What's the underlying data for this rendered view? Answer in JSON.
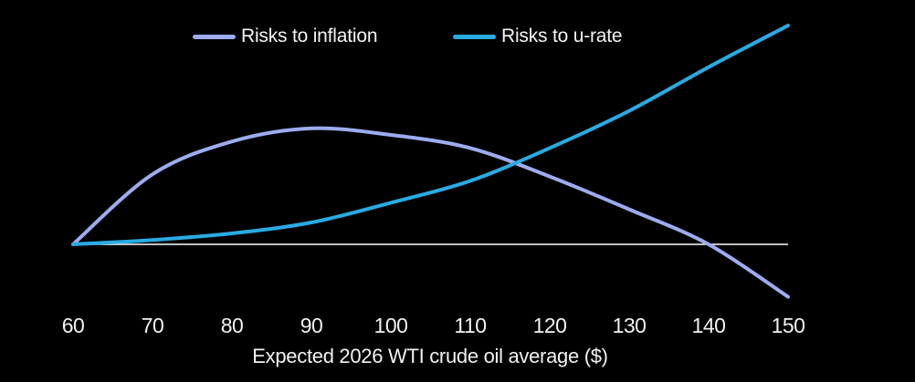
{
  "chart": {
    "background": "#000000",
    "baseline_color": "#ffffff",
    "text_color": "#f2f2f2"
  },
  "chart_data": {
    "type": "line",
    "title": "",
    "xlabel": "Expected 2026 WTI crude oil average ($)",
    "ylabel": "",
    "x": [
      60,
      70,
      80,
      90,
      100,
      110,
      120,
      130,
      140,
      150
    ],
    "categories": [
      "60",
      "70",
      "80",
      "90",
      "100",
      "110",
      "120",
      "130",
      "140",
      "150"
    ],
    "xlim": [
      60,
      150
    ],
    "ylim": [
      -0.3,
      1.05
    ],
    "baseline": 0,
    "grid": false,
    "legend_position": "top",
    "series": [
      {
        "name": "Risks to inflation",
        "color": "#9DACEF",
        "values": [
          0,
          0.32,
          0.47,
          0.53,
          0.5,
          0.44,
          0.31,
          0.16,
          0,
          -0.24
        ]
      },
      {
        "name": "Risks to u-rate",
        "color": "#29ABE2",
        "values": [
          0,
          0.02,
          0.05,
          0.1,
          0.19,
          0.29,
          0.44,
          0.61,
          0.81,
          1.0
        ]
      }
    ]
  }
}
